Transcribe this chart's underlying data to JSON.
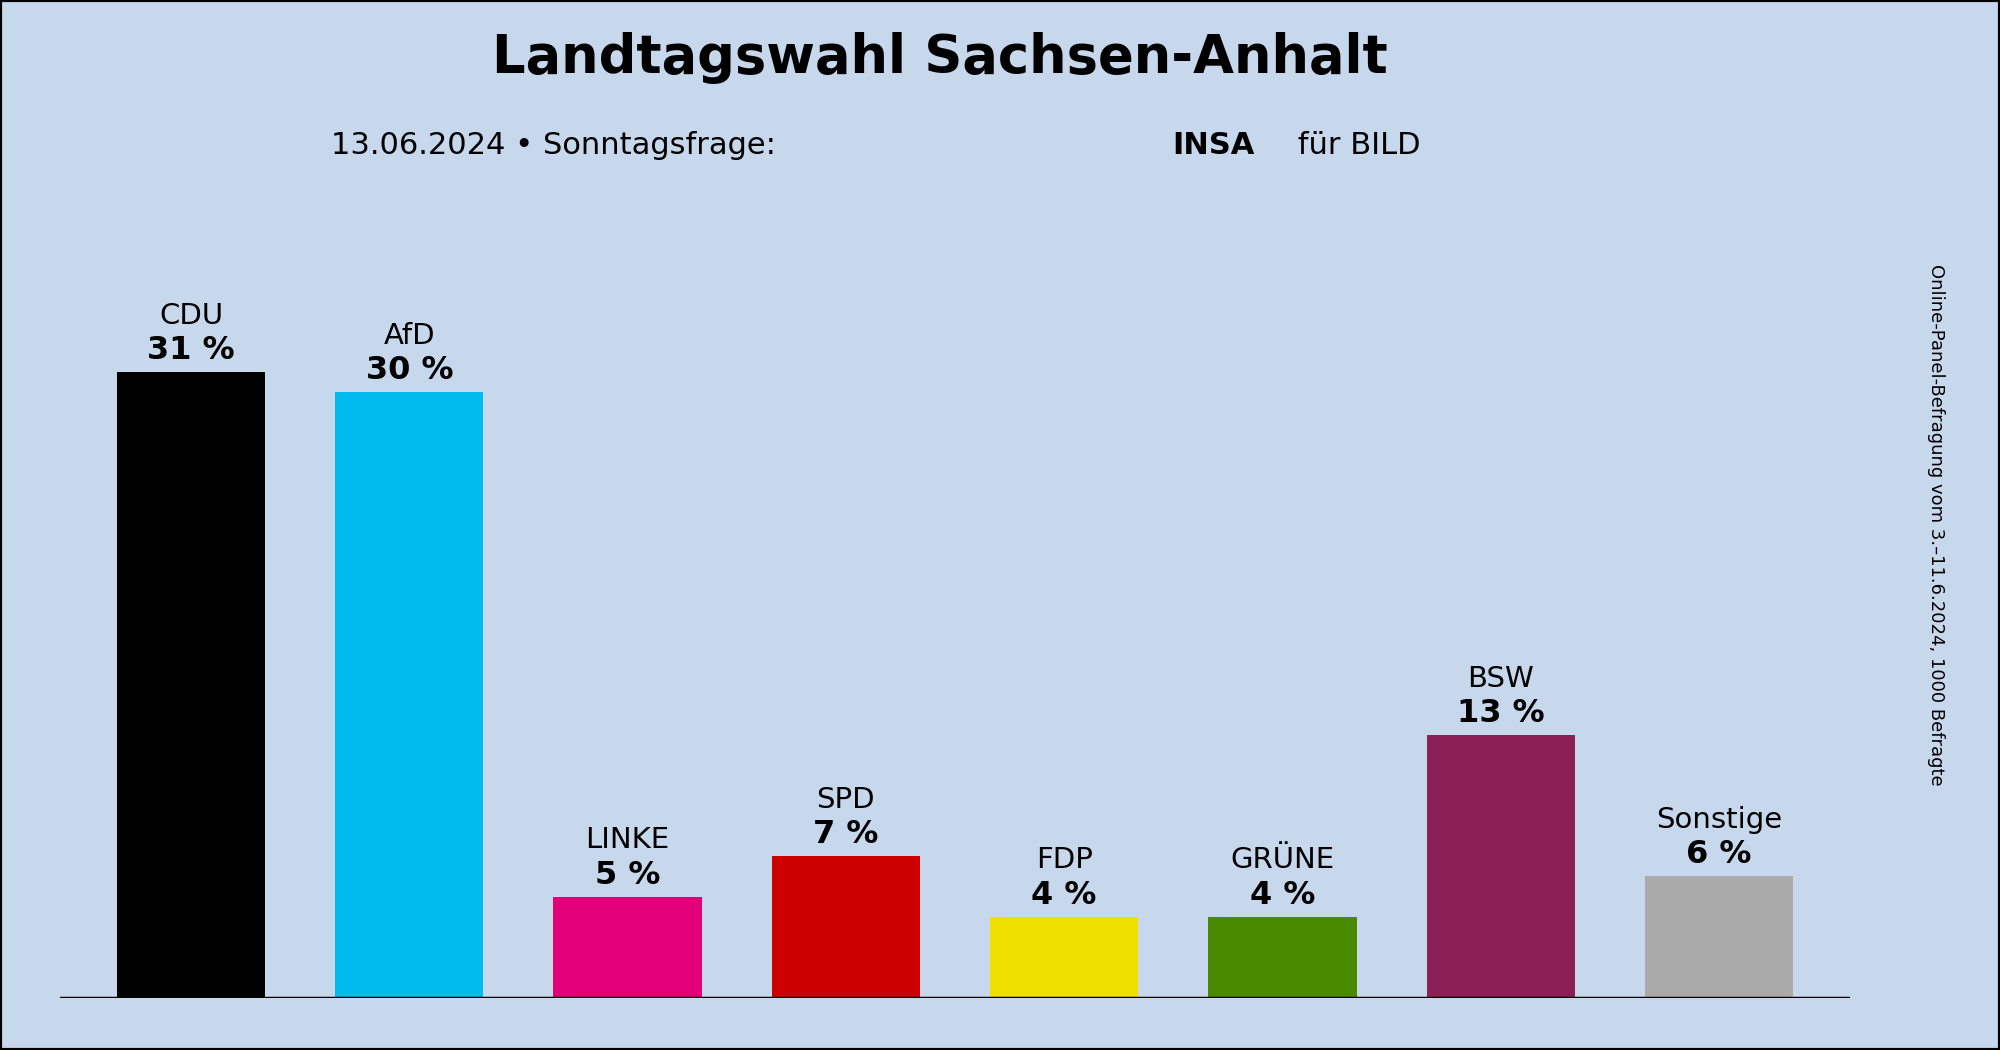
{
  "title": "Landtagswahl Sachsen-Anhalt",
  "subtitle_normal": "13.06.2024 • Sonntagsfrage:  ",
  "subtitle_bold": "INSA",
  "subtitle_end": " für BILD",
  "watermark": "Online-Panel-Befragung vom 3.–11.6.2024, 1000 Befragte",
  "background_color": "#c8d8ec",
  "border_color": "#000000",
  "categories": [
    "CDU",
    "AfD",
    "LINKE",
    "SPD",
    "FDP",
    "GRÜNE",
    "BSW",
    "Sonstige"
  ],
  "values": [
    31,
    30,
    5,
    7,
    4,
    4,
    13,
    6
  ],
  "labels": [
    "31 %",
    "30 %",
    "5 %",
    "7 %",
    "4 %",
    "4 %",
    "13 %",
    "6 %"
  ],
  "colors": [
    "#000000",
    "#00bbee",
    "#e2007a",
    "#cc0000",
    "#f0e000",
    "#4a8a00",
    "#8b2057",
    "#aaaaaa"
  ],
  "bar_width": 0.68,
  "ylim": [
    0,
    38
  ],
  "title_fontsize": 38,
  "subtitle_fontsize": 22,
  "label_name_fontsize": 21,
  "label_val_fontsize": 23,
  "watermark_fontsize": 13
}
